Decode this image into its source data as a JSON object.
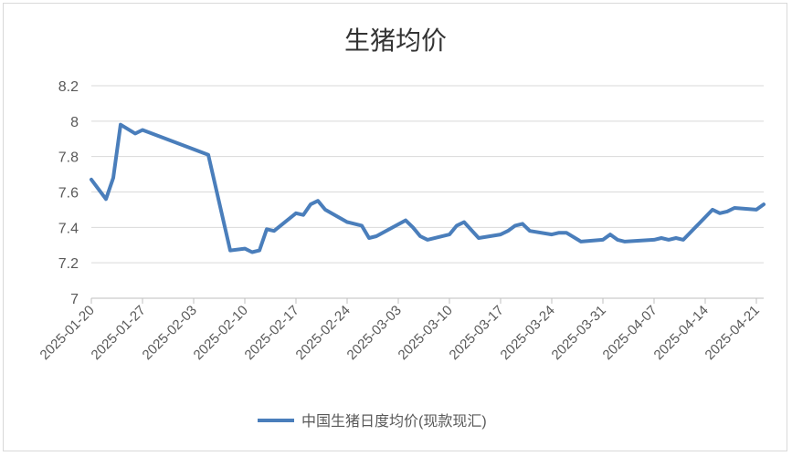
{
  "chart_data": {
    "type": "line",
    "title": "生猪均价",
    "xlabel": "",
    "ylabel": "",
    "ylim": [
      7,
      8.2
    ],
    "yticks": [
      "7",
      "7.2",
      "7.4",
      "7.6",
      "7.8",
      "8",
      "8.2"
    ],
    "xlim": [
      "2025-01-20",
      "2025-04-22"
    ],
    "xticks": [
      "2025-01-20",
      "2025-01-27",
      "2025-02-03",
      "2025-02-10",
      "2025-02-17",
      "2025-02-24",
      "2025-03-03",
      "2025-03-10",
      "2025-03-17",
      "2025-03-24",
      "2025-03-31",
      "2025-04-07",
      "2025-04-14",
      "2025-04-21"
    ],
    "grid": true,
    "legend_position": "bottom",
    "series": [
      {
        "name": "中国生猪日度均价(现款现汇)",
        "color": "#4a7ebb",
        "x": [
          "2025-01-20",
          "2025-01-22",
          "2025-01-23",
          "2025-01-24",
          "2025-01-26",
          "2025-01-27",
          "2025-02-05",
          "2025-02-08",
          "2025-02-10",
          "2025-02-11",
          "2025-02-12",
          "2025-02-13",
          "2025-02-14",
          "2025-02-17",
          "2025-02-18",
          "2025-02-19",
          "2025-02-20",
          "2025-02-21",
          "2025-02-24",
          "2025-02-26",
          "2025-02-27",
          "2025-02-28",
          "2025-03-04",
          "2025-03-05",
          "2025-03-06",
          "2025-03-07",
          "2025-03-10",
          "2025-03-11",
          "2025-03-12",
          "2025-03-14",
          "2025-03-17",
          "2025-03-18",
          "2025-03-19",
          "2025-03-20",
          "2025-03-21",
          "2025-03-24",
          "2025-03-25",
          "2025-03-26",
          "2025-03-28",
          "2025-03-31",
          "2025-04-01",
          "2025-04-02",
          "2025-04-03",
          "2025-04-07",
          "2025-04-08",
          "2025-04-09",
          "2025-04-10",
          "2025-04-11",
          "2025-04-15",
          "2025-04-16",
          "2025-04-17",
          "2025-04-18",
          "2025-04-21",
          "2025-04-22"
        ],
        "values": [
          7.67,
          7.56,
          7.68,
          7.98,
          7.93,
          7.95,
          7.81,
          7.27,
          7.28,
          7.26,
          7.27,
          7.39,
          7.38,
          7.48,
          7.47,
          7.53,
          7.55,
          7.5,
          7.43,
          7.41,
          7.34,
          7.35,
          7.44,
          7.4,
          7.35,
          7.33,
          7.36,
          7.41,
          7.43,
          7.34,
          7.36,
          7.38,
          7.41,
          7.42,
          7.38,
          7.36,
          7.37,
          7.37,
          7.32,
          7.33,
          7.36,
          7.33,
          7.32,
          7.33,
          7.34,
          7.33,
          7.34,
          7.33,
          7.5,
          7.48,
          7.49,
          7.51,
          7.5,
          7.53
        ]
      }
    ]
  }
}
